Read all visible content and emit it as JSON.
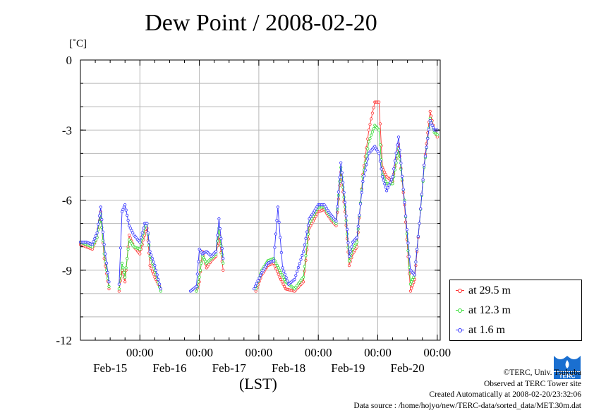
{
  "title": "Dew Point / 2008-02-20",
  "unit_label": "[˚C]",
  "xlabel": "(LST)",
  "legend": [
    {
      "label": "at 29.5 m",
      "color": "#ff3333"
    },
    {
      "label": "at 12.3 m",
      "color": "#33dd33"
    },
    {
      "label": "at 1.6 m",
      "color": "#3333ff"
    }
  ],
  "credits": {
    "copyright": "©TERC, Univ. Tsukuba",
    "observed": "Observed at TERC Tower site",
    "created": "Created Automatically at 2008-02-20/23:32:06",
    "source": "Data source : /home/hojyo/new/TERC-data/sorted_data/MET.30m.dat"
  },
  "logo_text": "TERC",
  "chart_data": {
    "type": "line",
    "title": "Dew Point / 2008-02-20",
    "ylabel": "[˚C]",
    "xlabel": "(LST)",
    "ylim": [
      -12,
      0
    ],
    "yticks": [
      0,
      -3,
      -6,
      -9,
      -12
    ],
    "xlim_days": [
      14.0,
      20.05
    ],
    "x_time_ticks": [
      {
        "x": 15.0,
        "label": "00:00"
      },
      {
        "x": 16.0,
        "label": "00:00"
      },
      {
        "x": 17.0,
        "label": "00:00"
      },
      {
        "x": 18.0,
        "label": "00:00"
      },
      {
        "x": 19.0,
        "label": "00:00"
      },
      {
        "x": 20.0,
        "label": "00:00"
      }
    ],
    "x_date_labels": [
      {
        "x": 14.5,
        "label": "Feb-15"
      },
      {
        "x": 15.5,
        "label": "Feb-16"
      },
      {
        "x": 16.5,
        "label": "Feb-17"
      },
      {
        "x": 17.5,
        "label": "Feb-18"
      },
      {
        "x": 18.5,
        "label": "Feb-19"
      },
      {
        "x": 19.5,
        "label": "Feb-20"
      }
    ],
    "grid": true,
    "legend_position": "bottom-right outside",
    "series": [
      {
        "name": "at 29.5 m",
        "color": "#ff3333",
        "segments": [
          [
            [
              14.0,
              -7.9
            ],
            [
              14.1,
              -8.0
            ],
            [
              14.2,
              -8.1
            ],
            [
              14.28,
              -7.6
            ],
            [
              14.34,
              -6.5
            ],
            [
              14.4,
              -8.5
            ],
            [
              14.48,
              -9.8
            ]
          ],
          [
            [
              14.65,
              -9.9
            ],
            [
              14.7,
              -9.0
            ],
            [
              14.75,
              -9.5
            ],
            [
              14.82,
              -7.5
            ],
            [
              14.9,
              -8.0
            ],
            [
              15.0,
              -8.3
            ],
            [
              15.08,
              -7.5
            ],
            [
              15.12,
              -7.2
            ],
            [
              15.17,
              -8.8
            ],
            [
              15.25,
              -9.3
            ],
            [
              15.35,
              -9.8
            ]
          ],
          [
            [
              15.95,
              -9.9
            ],
            [
              16.0,
              -9.5
            ],
            [
              16.05,
              -8.2
            ],
            [
              16.12,
              -8.9
            ],
            [
              16.2,
              -8.6
            ],
            [
              16.28,
              -8.4
            ],
            [
              16.33,
              -7.5
            ],
            [
              16.4,
              -9.0
            ]
          ],
          [
            [
              16.95,
              -9.9
            ],
            [
              17.05,
              -9.2
            ],
            [
              17.15,
              -8.8
            ],
            [
              17.25,
              -8.7
            ],
            [
              17.35,
              -9.3
            ],
            [
              17.45,
              -9.8
            ],
            [
              17.6,
              -9.9
            ],
            [
              17.75,
              -9.5
            ],
            [
              17.85,
              -7.2
            ],
            [
              18.0,
              -6.5
            ],
            [
              18.1,
              -6.4
            ],
            [
              18.2,
              -6.8
            ],
            [
              18.3,
              -7.1
            ],
            [
              18.38,
              -4.8
            ],
            [
              18.45,
              -6.5
            ],
            [
              18.52,
              -8.8
            ],
            [
              18.58,
              -8.3
            ],
            [
              18.65,
              -8.0
            ],
            [
              18.75,
              -4.9
            ],
            [
              18.85,
              -3.0
            ],
            [
              18.95,
              -1.8
            ],
            [
              19.02,
              -1.8
            ],
            [
              19.08,
              -4.6
            ],
            [
              19.15,
              -5.0
            ],
            [
              19.25,
              -5.2
            ],
            [
              19.35,
              -3.6
            ],
            [
              19.45,
              -6.2
            ],
            [
              19.55,
              -9.9
            ],
            [
              19.62,
              -9.4
            ],
            [
              19.7,
              -7.0
            ],
            [
              19.78,
              -4.5
            ],
            [
              19.88,
              -2.2
            ],
            [
              19.95,
              -3.0
            ],
            [
              20.0,
              -3.3
            ]
          ]
        ]
      },
      {
        "name": "at 12.3 m",
        "color": "#33dd33",
        "segments": [
          [
            [
              14.0,
              -7.8
            ],
            [
              14.1,
              -7.9
            ],
            [
              14.2,
              -8.0
            ],
            [
              14.28,
              -7.6
            ],
            [
              14.34,
              -6.6
            ],
            [
              14.4,
              -8.3
            ],
            [
              14.48,
              -9.7
            ]
          ],
          [
            [
              14.65,
              -9.8
            ],
            [
              14.7,
              -8.7
            ],
            [
              14.75,
              -9.3
            ],
            [
              14.82,
              -7.7
            ],
            [
              14.9,
              -8.0
            ],
            [
              15.0,
              -8.1
            ],
            [
              15.08,
              -7.2
            ],
            [
              15.12,
              -7.0
            ],
            [
              15.17,
              -8.4
            ],
            [
              15.25,
              -9.0
            ],
            [
              15.35,
              -9.9
            ]
          ],
          [
            [
              15.95,
              -9.9
            ],
            [
              16.0,
              -9.3
            ],
            [
              16.05,
              -8.4
            ],
            [
              16.12,
              -8.7
            ],
            [
              16.2,
              -8.5
            ],
            [
              16.28,
              -8.3
            ],
            [
              16.33,
              -7.2
            ],
            [
              16.4,
              -8.7
            ]
          ],
          [
            [
              16.95,
              -9.8
            ],
            [
              17.05,
              -9.0
            ],
            [
              17.15,
              -8.6
            ],
            [
              17.25,
              -8.5
            ],
            [
              17.35,
              -9.0
            ],
            [
              17.45,
              -9.5
            ],
            [
              17.6,
              -9.8
            ],
            [
              17.75,
              -9.3
            ],
            [
              17.85,
              -7.0
            ],
            [
              18.0,
              -6.3
            ],
            [
              18.1,
              -6.3
            ],
            [
              18.2,
              -6.7
            ],
            [
              18.3,
              -7.0
            ],
            [
              18.38,
              -4.6
            ],
            [
              18.45,
              -6.3
            ],
            [
              18.52,
              -8.6
            ],
            [
              18.58,
              -8.1
            ],
            [
              18.65,
              -7.8
            ],
            [
              18.75,
              -5.0
            ],
            [
              18.85,
              -3.5
            ],
            [
              18.95,
              -2.8
            ],
            [
              19.02,
              -3.0
            ],
            [
              19.08,
              -4.9
            ],
            [
              19.15,
              -5.3
            ],
            [
              19.25,
              -5.3
            ],
            [
              19.35,
              -3.8
            ],
            [
              19.45,
              -6.0
            ],
            [
              19.55,
              -9.6
            ],
            [
              19.62,
              -9.2
            ],
            [
              19.7,
              -7.0
            ],
            [
              19.78,
              -4.6
            ],
            [
              19.88,
              -2.5
            ],
            [
              19.95,
              -3.1
            ],
            [
              20.0,
              -3.2
            ]
          ]
        ]
      },
      {
        "name": "at 1.6 m",
        "color": "#3333ff",
        "segments": [
          [
            [
              14.0,
              -7.8
            ],
            [
              14.1,
              -7.8
            ],
            [
              14.2,
              -7.9
            ],
            [
              14.28,
              -7.4
            ],
            [
              14.34,
              -6.3
            ],
            [
              14.4,
              -7.9
            ],
            [
              14.48,
              -9.5
            ]
          ],
          [
            [
              14.65,
              -9.6
            ],
            [
              14.7,
              -6.5
            ],
            [
              14.75,
              -6.2
            ],
            [
              14.82,
              -7.1
            ],
            [
              14.9,
              -7.5
            ],
            [
              15.0,
              -7.8
            ],
            [
              15.08,
              -7.0
            ],
            [
              15.12,
              -7.0
            ],
            [
              15.17,
              -8.2
            ],
            [
              15.25,
              -8.8
            ],
            [
              15.35,
              -9.8
            ]
          ],
          [
            [
              15.85,
              -9.9
            ],
            [
              15.95,
              -9.7
            ],
            [
              16.0,
              -8.1
            ],
            [
              16.05,
              -8.3
            ],
            [
              16.12,
              -8.2
            ],
            [
              16.2,
              -8.4
            ],
            [
              16.28,
              -8.2
            ],
            [
              16.33,
              -6.8
            ],
            [
              16.4,
              -8.5
            ]
          ],
          [
            [
              16.92,
              -9.8
            ],
            [
              17.05,
              -9.1
            ],
            [
              17.15,
              -8.7
            ],
            [
              17.25,
              -8.6
            ],
            [
              17.32,
              -6.3
            ],
            [
              17.4,
              -8.9
            ],
            [
              17.5,
              -9.6
            ],
            [
              17.6,
              -9.4
            ],
            [
              17.75,
              -8.2
            ],
            [
              17.85,
              -6.8
            ],
            [
              18.0,
              -6.2
            ],
            [
              18.1,
              -6.2
            ],
            [
              18.2,
              -6.6
            ],
            [
              18.3,
              -6.9
            ],
            [
              18.38,
              -4.4
            ],
            [
              18.45,
              -6.1
            ],
            [
              18.52,
              -8.4
            ],
            [
              18.58,
              -7.8
            ],
            [
              18.65,
              -7.6
            ],
            [
              18.75,
              -5.2
            ],
            [
              18.85,
              -4.0
            ],
            [
              18.95,
              -3.7
            ],
            [
              19.02,
              -4.0
            ],
            [
              19.08,
              -5.0
            ],
            [
              19.15,
              -5.6
            ],
            [
              19.25,
              -5.0
            ],
            [
              19.35,
              -3.3
            ],
            [
              19.45,
              -6.1
            ],
            [
              19.55,
              -9.0
            ],
            [
              19.62,
              -9.2
            ],
            [
              19.7,
              -7.0
            ],
            [
              19.78,
              -4.5
            ],
            [
              19.88,
              -2.6
            ],
            [
              19.95,
              -3.0
            ],
            [
              20.0,
              -3.0
            ]
          ]
        ]
      }
    ]
  }
}
